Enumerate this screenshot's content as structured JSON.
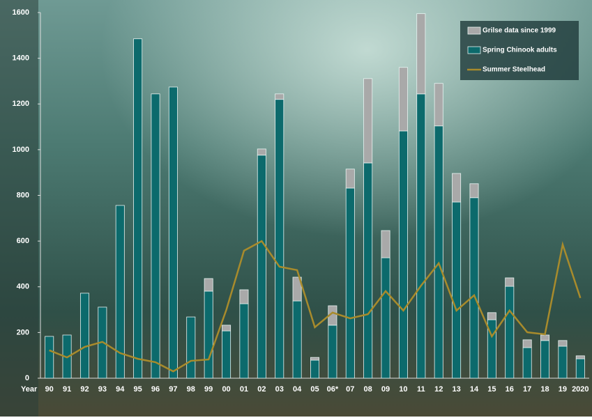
{
  "chart_data": {
    "type": "bar",
    "x_label": "Year",
    "categories": [
      "90",
      "91",
      "92",
      "93",
      "94",
      "95",
      "96",
      "97",
      "98",
      "99",
      "00",
      "01",
      "02",
      "03",
      "04",
      "05",
      "06*",
      "07",
      "08",
      "09",
      "10",
      "11",
      "12",
      "13",
      "14",
      "15",
      "16",
      "17",
      "18",
      "19",
      "2020"
    ],
    "series": [
      {
        "name": "Spring Chinook adults",
        "color": "#0c6a6c",
        "stack": true,
        "values": [
          183,
          189,
          372,
          311,
          756,
          1485,
          1244,
          1274,
          268,
          381,
          207,
          326,
          976,
          1220,
          338,
          79,
          232,
          832,
          942,
          527,
          1082,
          1244,
          1104,
          771,
          790,
          256,
          402,
          134,
          165,
          140,
          85
        ]
      },
      {
        "name": "Grilse data since 1999",
        "color": "#a9a9a9",
        "stack": true,
        "values": [
          null,
          null,
          null,
          null,
          null,
          null,
          null,
          null,
          null,
          55,
          25,
          61,
          27,
          24,
          104,
          12,
          85,
          83,
          369,
          119,
          278,
          351,
          186,
          125,
          61,
          31,
          37,
          34,
          24,
          25,
          13
        ]
      },
      {
        "name": "Summer Steelhead",
        "color": "#a88b2c",
        "type": "line",
        "values": [
          122,
          91,
          137,
          159,
          110,
          85,
          70,
          30,
          76,
          82,
          299,
          558,
          600,
          488,
          473,
          223,
          287,
          262,
          280,
          381,
          296,
          405,
          503,
          296,
          363,
          183,
          296,
          201,
          192,
          585,
          351
        ]
      }
    ],
    "ylim": [
      0,
      1600
    ],
    "yticks": [
      0,
      200,
      400,
      600,
      800,
      1000,
      1200,
      1400,
      1600
    ],
    "legend": "top-right",
    "grid": false
  }
}
